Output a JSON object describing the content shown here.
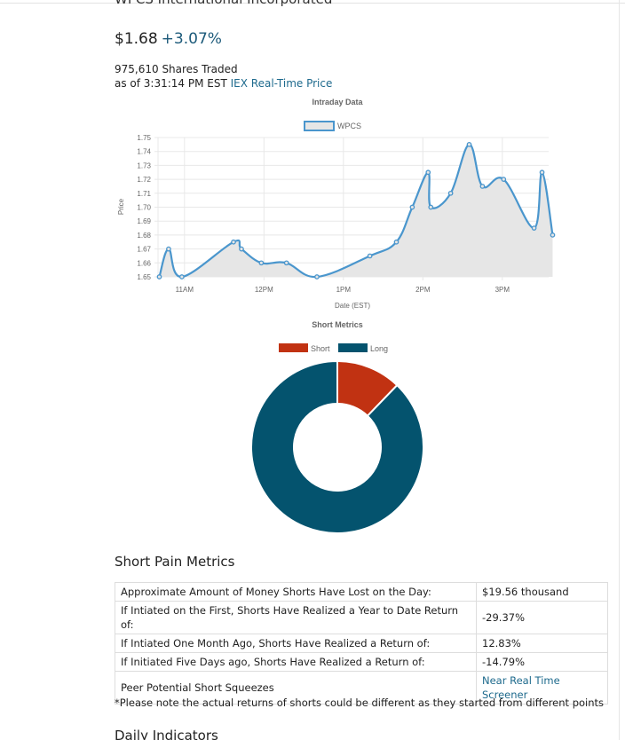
{
  "header": {
    "company_title": "WPCS International Incorporated",
    "price": "$1.68",
    "change": "+3.07%",
    "shares_traded": "975,610 Shares Traded",
    "as_of": "as of 3:31:14 PM EST",
    "as_of_link": "IEX Real-Time Price"
  },
  "colors": {
    "line": "#4a96cd",
    "area": "#e6e6e6",
    "short": "#c13212",
    "long": "#04536e",
    "link": "#1e6a8d"
  },
  "chart_data": [
    {
      "type": "line",
      "title": "Intraday Data",
      "xlabel": "Date (EST)",
      "ylabel": "Price",
      "legend": [
        "WPCS"
      ],
      "legend_position": "top",
      "yticks": [
        "1.75",
        "1.74",
        "1.73",
        "1.72",
        "1.71",
        "1.70",
        "1.69",
        "1.68",
        "1.67",
        "1.66",
        "1.65"
      ],
      "ylim": [
        1.65,
        1.75
      ],
      "xticks": [
        "11AM",
        "12PM",
        "1PM",
        "2PM",
        "3PM"
      ],
      "xlim": [
        "10:40",
        "15:35"
      ],
      "grid": true,
      "series": [
        {
          "name": "WPCS",
          "points": [
            {
              "x": "10:41",
              "y": 1.65
            },
            {
              "x": "10:48",
              "y": 1.67
            },
            {
              "x": "10:58",
              "y": 1.65
            },
            {
              "x": "11:37",
              "y": 1.675
            },
            {
              "x": "11:43",
              "y": 1.67
            },
            {
              "x": "11:58",
              "y": 1.66
            },
            {
              "x": "12:17",
              "y": 1.66
            },
            {
              "x": "12:40",
              "y": 1.65
            },
            {
              "x": "13:20",
              "y": 1.665
            },
            {
              "x": "13:40",
              "y": 1.675
            },
            {
              "x": "13:52",
              "y": 1.7
            },
            {
              "x": "14:04",
              "y": 1.725
            },
            {
              "x": "14:06",
              "y": 1.7
            },
            {
              "x": "14:21",
              "y": 1.71
            },
            {
              "x": "14:35",
              "y": 1.745
            },
            {
              "x": "14:45",
              "y": 1.715
            },
            {
              "x": "15:01",
              "y": 1.72
            },
            {
              "x": "15:24",
              "y": 1.685
            },
            {
              "x": "15:30",
              "y": 1.725
            },
            {
              "x": "15:38",
              "y": 1.68
            }
          ]
        }
      ]
    },
    {
      "type": "pie",
      "title": "Short Metrics",
      "legend_position": "top",
      "series": [
        {
          "name": "Short",
          "value": 12.2
        },
        {
          "name": "Long",
          "value": 87.8
        }
      ]
    }
  ],
  "short_pain": {
    "title": "Short Pain Metrics",
    "rows": [
      {
        "label": "Approximate Amount of Money Shorts Have Lost on the Day:",
        "value": "$19.56 thousand"
      },
      {
        "label": "If Intiated on the First, Shorts Have Realized a Year to Date Return of:",
        "value": "-29.37%"
      },
      {
        "label": "If Intiated One Month Ago, Shorts Have Realized a Return of:",
        "value": "12.83%"
      },
      {
        "label": "If Initiated Five Days ago, Shorts Have Realized a Return of:",
        "value": "-14.79%"
      },
      {
        "label": "Peer Potential Short Squeezes",
        "value": "Near Real Time Screener"
      }
    ],
    "note": "*Please note the actual returns of shorts could be different as they started from different points"
  },
  "daily": {
    "title": "Daily Indicators"
  }
}
